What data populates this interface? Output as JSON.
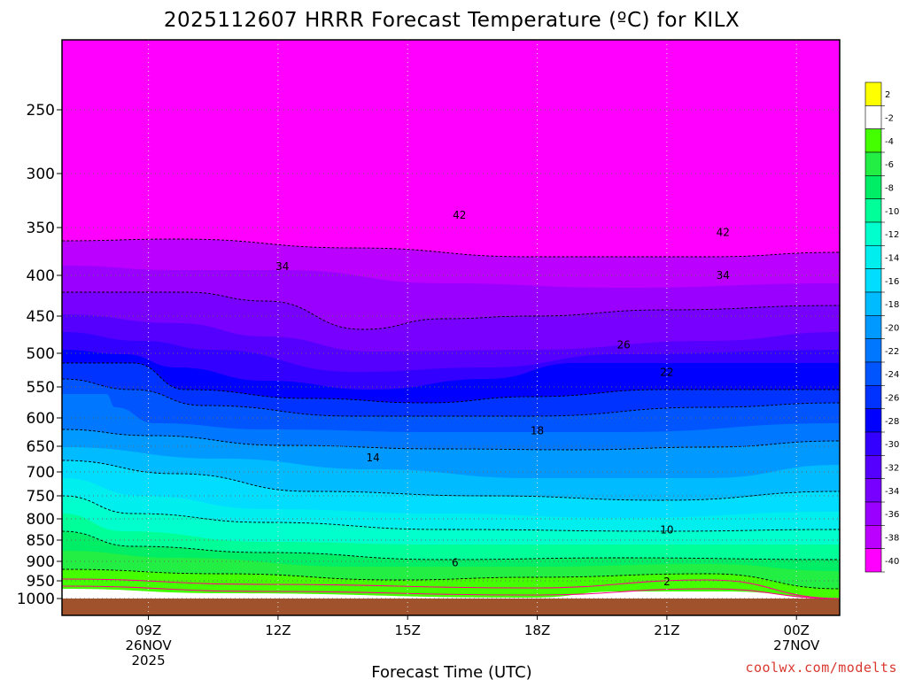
{
  "chart_data": {
    "type": "heatmap",
    "title": "2025112607 HRRR Forecast Temperature (ºC) for KILX",
    "xlabel": "Forecast Time (UTC)",
    "ylabel": "",
    "credit": "coolwx.com/modelts",
    "y_axis": {
      "scale": "log-pressure",
      "inverted": true,
      "range": [
        1050,
        200
      ],
      "ticks": [
        250,
        300,
        350,
        400,
        450,
        500,
        550,
        600,
        650,
        700,
        750,
        800,
        850,
        900,
        950,
        1000
      ]
    },
    "x_axis": {
      "range_hours": [
        7,
        25
      ],
      "ticks": [
        {
          "hour": 9,
          "lines": [
            "09Z",
            "26NOV",
            "2025"
          ]
        },
        {
          "hour": 12,
          "lines": [
            "12Z"
          ]
        },
        {
          "hour": 15,
          "lines": [
            "15Z"
          ]
        },
        {
          "hour": 18,
          "lines": [
            "18Z"
          ]
        },
        {
          "hour": 21,
          "lines": [
            "21Z"
          ]
        },
        {
          "hour": 24,
          "lines": [
            "00Z",
            "27NOV"
          ]
        }
      ]
    },
    "grid": true,
    "colorbar": {
      "placement": "right",
      "levels": [
        {
          "label": "2",
          "color": "#ffff00"
        },
        {
          "label": "-2",
          "color": "#ffffff"
        },
        {
          "label": "-4",
          "color": "#44ff00"
        },
        {
          "label": "-6",
          "color": "#22ee44"
        },
        {
          "label": "-8",
          "color": "#00ee66"
        },
        {
          "label": "-10",
          "color": "#00ff99"
        },
        {
          "label": "-12",
          "color": "#00ffcc"
        },
        {
          "label": "-14",
          "color": "#00eeee"
        },
        {
          "label": "-16",
          "color": "#00ddff"
        },
        {
          "label": "-18",
          "color": "#00bbff"
        },
        {
          "label": "-20",
          "color": "#0099ff"
        },
        {
          "label": "-22",
          "color": "#0077ff"
        },
        {
          "label": "-24",
          "color": "#0055ff"
        },
        {
          "label": "-26",
          "color": "#0033ff"
        },
        {
          "label": "-28",
          "color": "#0000ff"
        },
        {
          "label": "-30",
          "color": "#3300ff"
        },
        {
          "label": "-32",
          "color": "#5500ff"
        },
        {
          "label": "-34",
          "color": "#7700ff"
        },
        {
          "label": "-36",
          "color": "#9900ff"
        },
        {
          "label": "-38",
          "color": "#bb00ff"
        },
        {
          "label": "-40",
          "color": "#ff00ff"
        }
      ]
    },
    "contour_labels": [
      {
        "value": "42",
        "hour": 16.2,
        "pressure": 338
      },
      {
        "value": "42",
        "hour": 22.3,
        "pressure": 355
      },
      {
        "value": "34",
        "hour": 12.1,
        "pressure": 390
      },
      {
        "value": "34",
        "hour": 22.3,
        "pressure": 400
      },
      {
        "value": "26",
        "hour": 20.0,
        "pressure": 488
      },
      {
        "value": "22",
        "hour": 21.0,
        "pressure": 528
      },
      {
        "value": "18",
        "hour": 18.0,
        "pressure": 622
      },
      {
        "value": "14",
        "hour": 14.2,
        "pressure": 672
      },
      {
        "value": "10",
        "hour": 21.0,
        "pressure": 826
      },
      {
        "value": "6",
        "hour": 16.1,
        "pressure": 903
      },
      {
        "value": "2",
        "hour": 21.0,
        "pressure": 953
      }
    ]
  }
}
